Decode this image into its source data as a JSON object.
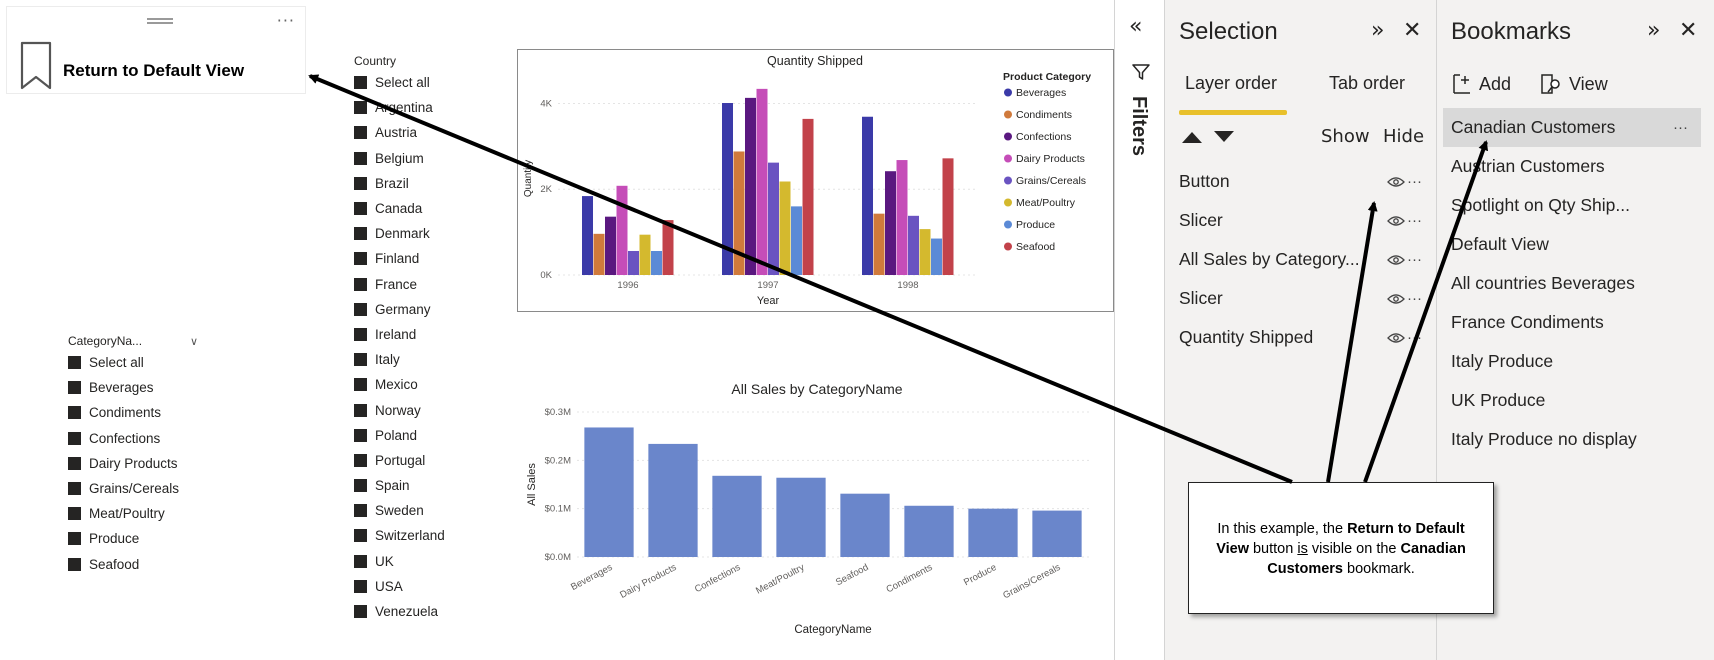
{
  "bookmark_button": {
    "label": "Return to Default View",
    "more": "···"
  },
  "country_slicer": {
    "title": "Country",
    "items": [
      "Select all",
      "Argentina",
      "Austria",
      "Belgium",
      "Brazil",
      "Canada",
      "Denmark",
      "Finland",
      "France",
      "Germany",
      "Ireland",
      "Italy",
      "Mexico",
      "Norway",
      "Poland",
      "Portugal",
      "Spain",
      "Sweden",
      "Switzerland",
      "UK",
      "USA",
      "Venezuela"
    ]
  },
  "category_slicer": {
    "title": "CategoryNa...",
    "items": [
      "Select all",
      "Beverages",
      "Condiments",
      "Confections",
      "Dairy Products",
      "Grains/Cereals",
      "Meat/Poultry",
      "Produce",
      "Seafood"
    ]
  },
  "chart_data": [
    {
      "type": "bar",
      "title": "Quantity Shipped",
      "xlabel": "Year",
      "ylabel": "Quantity",
      "categories": [
        "1996",
        "1997",
        "1998"
      ],
      "yticks": [
        "0K",
        "2K",
        "4K"
      ],
      "ylim": [
        0,
        4500
      ],
      "legend_title": "Product Category",
      "legend_position": "right",
      "series": [
        {
          "name": "Beverages",
          "color": "#3b3aa8",
          "values": [
            1840,
            4010,
            3690
          ]
        },
        {
          "name": "Condiments",
          "color": "#d07a3c",
          "values": [
            960,
            2880,
            1430
          ]
        },
        {
          "name": "Confections",
          "color": "#5a1880",
          "values": [
            1360,
            4130,
            2420
          ]
        },
        {
          "name": "Dairy Products",
          "color": "#c54db8",
          "values": [
            2080,
            4340,
            2680
          ]
        },
        {
          "name": "Grains/Cereals",
          "color": "#6a53c1",
          "values": [
            560,
            2620,
            1380
          ]
        },
        {
          "name": "Meat/Poultry",
          "color": "#d4b92e",
          "values": [
            940,
            2180,
            1070
          ]
        },
        {
          "name": "Produce",
          "color": "#5b8ad6",
          "values": [
            560,
            1600,
            850
          ]
        },
        {
          "name": "Seafood",
          "color": "#c2424a",
          "values": [
            1280,
            3640,
            2720
          ]
        }
      ]
    },
    {
      "type": "bar",
      "title": "All Sales by CategoryName",
      "xlabel": "CategoryName",
      "ylabel": "All Sales",
      "categories": [
        "Beverages",
        "Dairy Products",
        "Confections",
        "Meat/Poultry",
        "Seafood",
        "Condiments",
        "Produce",
        "Grains/Cereals"
      ],
      "values": [
        0.268,
        0.234,
        0.168,
        0.164,
        0.131,
        0.106,
        0.1,
        0.096
      ],
      "yticks": [
        "$0.0M",
        "$0.1M",
        "$0.2M",
        "$0.3M"
      ],
      "ylim": [
        0,
        0.3
      ],
      "color": "#6a86cb"
    }
  ],
  "filters": {
    "label": "Filters"
  },
  "selection_pane": {
    "title": "Selection",
    "tabs": [
      {
        "label": "Layer order"
      },
      {
        "label": "Tab order"
      }
    ],
    "show_label": "Show",
    "hide_label": "Hide",
    "layers": [
      "Button",
      "Slicer",
      "All Sales by Category...",
      "Slicer",
      "Quantity Shipped"
    ]
  },
  "bookmarks_pane": {
    "title": "Bookmarks",
    "add_label": "Add",
    "view_label": "View",
    "items": [
      "Canadian Customers",
      "Austrian Customers",
      "Spotlight on Qty Ship...",
      "Default View",
      "All countries Beverages",
      "France Condiments",
      "Italy Produce",
      "UK Produce",
      "Italy Produce no display"
    ],
    "selected_index": 0
  },
  "callout": {
    "t1": "In this example, the ",
    "b1": "Return to Default View",
    "t2": " button ",
    "u1": "is",
    "t3": " visible on the ",
    "b2": "Canadian Customers",
    "t4": " bookmark."
  }
}
